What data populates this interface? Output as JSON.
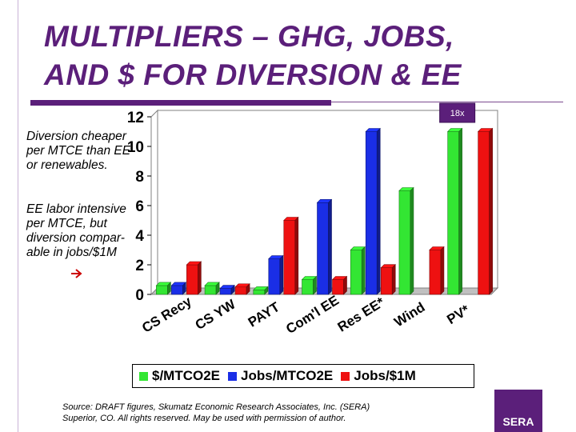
{
  "slide": {
    "title_line1": "MULTIPLIERS – GHG, JOBS,",
    "title_line2": "AND $ FOR DIVERSION & EE",
    "callout1_lines": [
      "Diversion cheaper",
      "per MTCE than EE",
      "or renewables."
    ],
    "callout2_lines": [
      "EE labor intensive",
      "per MTCE, but",
      "diversion compar-",
      "able in jobs/$1M"
    ],
    "arrow_icon": "right-arrow-icon",
    "source_line1": "Source:  DRAFT figures, Skumatz Economic Research Associates, Inc. (SERA)",
    "source_line2": "Superior, CO.  All rights reserved.  May be used with permission of author.",
    "logo_text": "SERA",
    "title_color": "#5b1f7a"
  },
  "chart_data": {
    "type": "bar",
    "style": "3d clustered",
    "categories": [
      "CS Recy",
      "CS YW",
      "PAYT",
      "Com'l EE",
      "Res EE*",
      "Wind",
      "PV*"
    ],
    "series": [
      {
        "name": "$/MTCO2E",
        "color": "#33e633",
        "values": [
          0.6,
          0.6,
          0.3,
          1.0,
          3.0,
          7.0,
          11.0
        ]
      },
      {
        "name": "Jobs/MTCO2E",
        "color": "#1a2ee6",
        "values": [
          0.6,
          0.4,
          2.4,
          6.2,
          11.0,
          null,
          null
        ]
      },
      {
        "name": "Jobs/$1M",
        "color": "#ee1111",
        "values": [
          2.0,
          0.5,
          5.0,
          1.0,
          1.8,
          3.0,
          11.0
        ]
      }
    ],
    "yticks": [
      0,
      2,
      4,
      6,
      8,
      10,
      12
    ],
    "ylim": [
      0,
      12
    ],
    "annotations": [
      {
        "text": "18x",
        "category": "PV*"
      }
    ],
    "legend_position": "bottom",
    "grid": false
  }
}
